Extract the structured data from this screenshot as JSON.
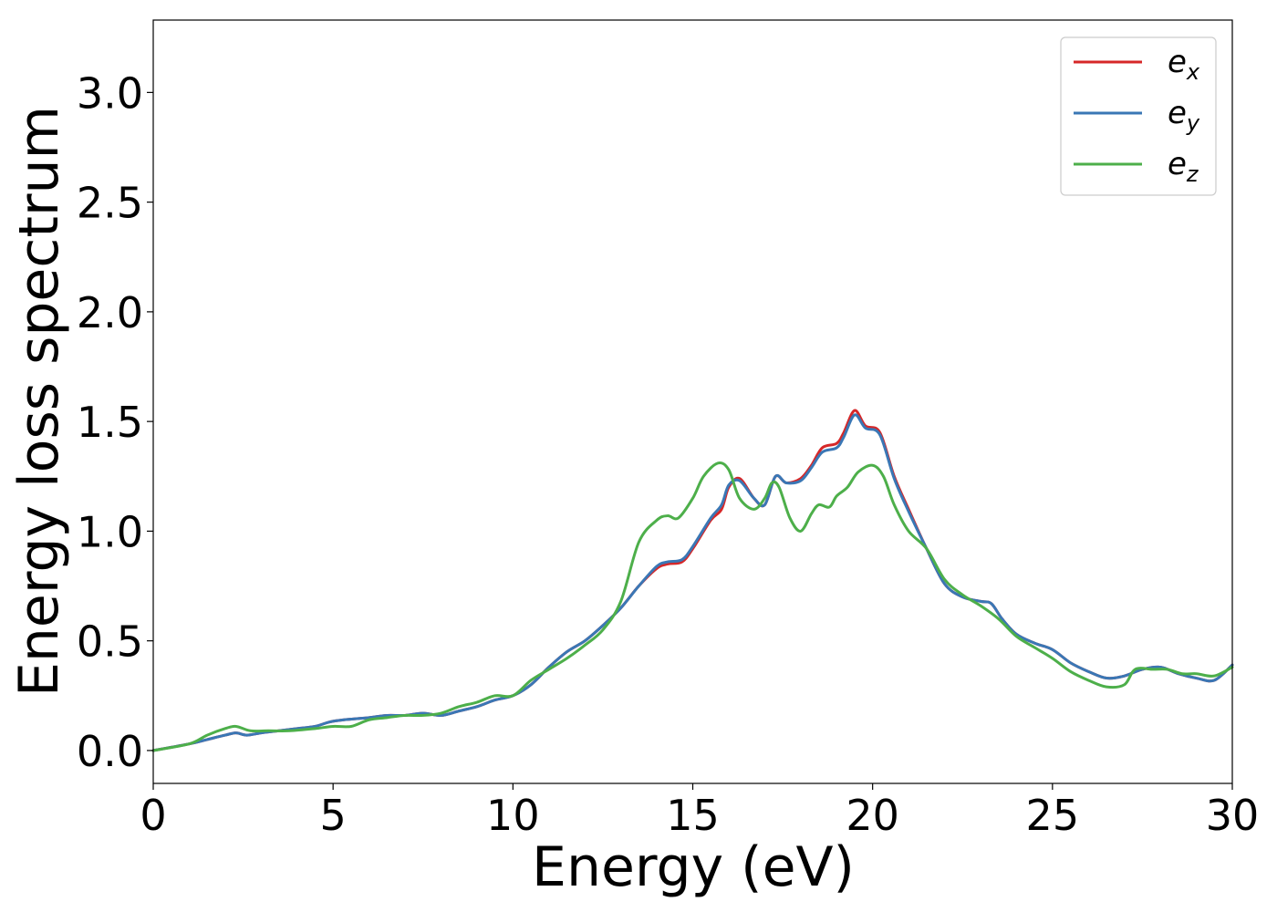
{
  "chart_data": {
    "type": "line",
    "title": "",
    "xlabel": "Energy (eV)",
    "ylabel": "Energy loss spectrum",
    "xlim": [
      0,
      30
    ],
    "ylim": [
      -0.15,
      3.33
    ],
    "xticks": [
      0,
      5,
      10,
      15,
      20,
      25,
      30
    ],
    "xtick_labels": [
      "0",
      "5",
      "10",
      "15",
      "20",
      "25",
      "30"
    ],
    "yticks": [
      0.0,
      0.5,
      1.0,
      1.5,
      2.0,
      2.5,
      3.0
    ],
    "ytick_labels": [
      "0.0",
      "0.5",
      "1.0",
      "1.5",
      "2.0",
      "2.5",
      "3.0"
    ],
    "grid": false,
    "legend_position": "top-right",
    "series": [
      {
        "name": "e_x",
        "label_base": "e",
        "label_sub": "x",
        "color": "#d62728",
        "x": [
          0,
          1,
          1.5,
          2,
          2.3,
          2.6,
          3,
          3.5,
          4,
          4.5,
          4.9,
          5.3,
          6,
          6.5,
          7,
          7.5,
          8,
          8.5,
          9,
          9.5,
          10,
          10.5,
          11,
          11.5,
          12,
          12.5,
          13,
          13.5,
          14,
          14.3,
          14.7,
          15,
          15.5,
          15.8,
          16,
          16.3,
          16.7,
          17,
          17.3,
          17.6,
          18,
          18.3,
          18.6,
          19,
          19.2,
          19.5,
          19.8,
          20.2,
          20.6,
          21,
          21.5,
          22,
          22.5,
          23,
          23.3,
          23.6,
          24,
          24.5,
          25,
          25.5,
          26,
          26.5,
          27,
          27.5,
          28,
          28.5,
          29,
          29.5,
          30
        ],
        "y": [
          0.0,
          0.03,
          0.05,
          0.07,
          0.08,
          0.07,
          0.08,
          0.09,
          0.1,
          0.11,
          0.13,
          0.14,
          0.15,
          0.16,
          0.16,
          0.17,
          0.16,
          0.18,
          0.2,
          0.23,
          0.25,
          0.3,
          0.38,
          0.45,
          0.5,
          0.57,
          0.65,
          0.75,
          0.83,
          0.85,
          0.86,
          0.92,
          1.05,
          1.1,
          1.2,
          1.24,
          1.15,
          1.12,
          1.25,
          1.22,
          1.24,
          1.3,
          1.38,
          1.4,
          1.45,
          1.55,
          1.48,
          1.45,
          1.25,
          1.1,
          0.92,
          0.76,
          0.7,
          0.68,
          0.67,
          0.6,
          0.53,
          0.49,
          0.46,
          0.4,
          0.36,
          0.33,
          0.34,
          0.37,
          0.38,
          0.35,
          0.33,
          0.32,
          0.39
        ]
      },
      {
        "name": "e_y",
        "label_base": "e",
        "label_sub": "y",
        "color": "#3a77b5",
        "x": [
          0,
          1,
          1.5,
          2,
          2.3,
          2.6,
          3,
          3.5,
          4,
          4.5,
          4.9,
          5.3,
          6,
          6.5,
          7,
          7.5,
          8,
          8.5,
          9,
          9.5,
          10,
          10.5,
          11,
          11.5,
          12,
          12.5,
          13,
          13.5,
          14,
          14.3,
          14.7,
          15,
          15.5,
          15.8,
          16,
          16.3,
          16.7,
          17,
          17.3,
          17.6,
          18,
          18.3,
          18.6,
          19,
          19.2,
          19.5,
          19.8,
          20.2,
          20.6,
          21,
          21.5,
          22,
          22.5,
          23,
          23.3,
          23.6,
          24,
          24.5,
          25,
          25.5,
          26,
          26.5,
          27,
          27.5,
          28,
          28.5,
          29,
          29.5,
          30
        ],
        "y": [
          0.0,
          0.03,
          0.05,
          0.07,
          0.08,
          0.07,
          0.08,
          0.09,
          0.1,
          0.11,
          0.13,
          0.14,
          0.15,
          0.16,
          0.16,
          0.17,
          0.16,
          0.18,
          0.2,
          0.23,
          0.25,
          0.3,
          0.38,
          0.45,
          0.5,
          0.57,
          0.65,
          0.75,
          0.84,
          0.86,
          0.87,
          0.93,
          1.06,
          1.12,
          1.21,
          1.23,
          1.15,
          1.12,
          1.25,
          1.22,
          1.23,
          1.29,
          1.36,
          1.38,
          1.43,
          1.53,
          1.47,
          1.44,
          1.24,
          1.09,
          0.92,
          0.76,
          0.7,
          0.68,
          0.67,
          0.6,
          0.53,
          0.49,
          0.46,
          0.4,
          0.36,
          0.33,
          0.34,
          0.37,
          0.38,
          0.35,
          0.33,
          0.32,
          0.39
        ]
      },
      {
        "name": "e_z",
        "label_base": "e",
        "label_sub": "z",
        "color": "#4daf4a",
        "x": [
          0,
          1,
          1.5,
          2,
          2.3,
          2.7,
          3.2,
          3.8,
          4.5,
          5,
          5.5,
          6,
          6.5,
          7,
          7.5,
          8,
          8.5,
          9,
          9.5,
          10,
          10.5,
          11,
          11.5,
          12,
          12.5,
          13,
          13.5,
          14,
          14.3,
          14.6,
          15,
          15.3,
          15.7,
          16,
          16.3,
          16.7,
          17,
          17.2,
          17.4,
          17.7,
          18,
          18.3,
          18.5,
          18.8,
          19,
          19.3,
          19.6,
          20,
          20.3,
          20.6,
          21,
          21.5,
          22,
          22.5,
          23,
          23.5,
          24,
          24.5,
          25,
          25.5,
          26,
          26.5,
          27,
          27.3,
          27.8,
          28.2,
          28.6,
          29,
          29.5,
          30
        ],
        "y": [
          0.0,
          0.03,
          0.07,
          0.1,
          0.11,
          0.09,
          0.09,
          0.09,
          0.1,
          0.11,
          0.11,
          0.14,
          0.15,
          0.16,
          0.16,
          0.17,
          0.2,
          0.22,
          0.25,
          0.25,
          0.32,
          0.37,
          0.42,
          0.48,
          0.55,
          0.68,
          0.95,
          1.05,
          1.07,
          1.06,
          1.15,
          1.25,
          1.31,
          1.28,
          1.15,
          1.1,
          1.15,
          1.22,
          1.2,
          1.06,
          1.0,
          1.08,
          1.12,
          1.11,
          1.16,
          1.2,
          1.27,
          1.3,
          1.25,
          1.12,
          1.0,
          0.92,
          0.78,
          0.71,
          0.66,
          0.6,
          0.52,
          0.47,
          0.42,
          0.36,
          0.32,
          0.29,
          0.3,
          0.37,
          0.37,
          0.37,
          0.35,
          0.35,
          0.34,
          0.38
        ]
      }
    ]
  }
}
